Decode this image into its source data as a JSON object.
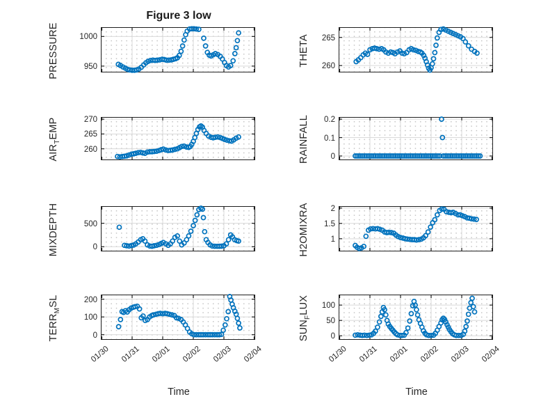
{
  "figure": {
    "title": "Figure 3 low",
    "xlabel": "Time",
    "x_tick_labels": [
      "01/30",
      "01/31",
      "02/01",
      "02/02",
      "02/03",
      "02/04"
    ],
    "x_range_days": [
      0,
      5
    ],
    "marker_color": "#0072BD",
    "axis_color": "#1f1f1f",
    "grid_color": "#d9d9d9",
    "minor_grid_color": "#c2c2c2",
    "text_color": "#262626",
    "background_color": "#ffffff"
  },
  "chart_data": [
    {
      "type": "scatter",
      "name": "pressure",
      "ylabel": [
        {
          "text": "PRESSURE"
        }
      ],
      "yticks": [
        950,
        1000
      ],
      "ylim": [
        940.5,
        1014.5
      ],
      "t": [
        0.55,
        0.62,
        0.7,
        0.78,
        0.85,
        0.92,
        1.0,
        1.08,
        1.15,
        1.22,
        1.3,
        1.38,
        1.45,
        1.52,
        1.6,
        1.68,
        1.75,
        1.82,
        1.9,
        1.98,
        2.05,
        2.12,
        2.2,
        2.28,
        2.35,
        2.42,
        2.48,
        2.54,
        2.6,
        2.65,
        2.7,
        2.75,
        2.8,
        2.88,
        2.95,
        3.02,
        3.1,
        3.18,
        3.34,
        3.4,
        3.46,
        3.52,
        3.58,
        3.65,
        3.72,
        3.8,
        3.88,
        3.95,
        4.02,
        4.08,
        4.15,
        4.22,
        4.3,
        4.36,
        4.4,
        4.44,
        4.48
      ],
      "v": [
        953,
        951,
        948.5,
        946.5,
        944.5,
        943.5,
        943,
        943,
        943.5,
        945,
        948,
        952,
        955.5,
        958,
        959.5,
        960,
        959.5,
        960,
        960.5,
        961.5,
        961,
        960,
        960,
        960.5,
        961.5,
        962.5,
        964,
        968,
        975,
        984,
        994,
        1003,
        1009,
        1012.5,
        1013,
        1013,
        1012.5,
        1012,
        997,
        984,
        973,
        968.5,
        967,
        969,
        971,
        969.5,
        966.5,
        962,
        956,
        951,
        948.5,
        951,
        959,
        971,
        981,
        993,
        1006
      ]
    },
    {
      "type": "scatter",
      "name": "theta",
      "ylabel": [
        {
          "text": "THETA"
        }
      ],
      "yticks": [
        260,
        265
      ],
      "ylim": [
        258.9,
        266.7
      ],
      "t": [
        0.55,
        0.62,
        0.7,
        0.78,
        0.85,
        0.92,
        1.0,
        1.08,
        1.15,
        1.22,
        1.3,
        1.38,
        1.45,
        1.52,
        1.6,
        1.68,
        1.75,
        1.82,
        1.9,
        1.98,
        2.05,
        2.12,
        2.2,
        2.28,
        2.35,
        2.42,
        2.5,
        2.58,
        2.65,
        2.7,
        2.76,
        2.8,
        2.84,
        2.88,
        2.92,
        2.96,
        3.0,
        3.04,
        3.08,
        3.12,
        3.16,
        3.2,
        3.26,
        3.32,
        3.4,
        3.48,
        3.56,
        3.64,
        3.72,
        3.8,
        3.88,
        3.96,
        4.04,
        4.12,
        4.22,
        4.32,
        4.42,
        4.5
      ],
      "v": [
        260.7,
        261.0,
        261.4,
        261.9,
        262.2,
        262.0,
        262.8,
        263.0,
        263.1,
        263.0,
        262.9,
        263.0,
        262.8,
        262.4,
        262.2,
        262.4,
        262.3,
        262.1,
        262.4,
        262.6,
        262.2,
        262.1,
        262.3,
        262.8,
        263.0,
        262.8,
        262.7,
        262.5,
        262.4,
        262.2,
        261.8,
        261.3,
        260.7,
        260.1,
        259.5,
        259.2,
        259.6,
        260.3,
        261.2,
        262.3,
        263.6,
        264.9,
        265.9,
        266.4,
        266.5,
        266.3,
        266.1,
        265.9,
        265.7,
        265.5,
        265.3,
        265.1,
        264.8,
        264.2,
        263.5,
        262.9,
        262.5,
        262.2
      ]
    },
    {
      "type": "scatter",
      "name": "air_temp",
      "ylabel": [
        {
          "text": "AIR"
        },
        {
          "text": "T",
          "sub": true
        },
        {
          "text": "EMP"
        }
      ],
      "yticks": [
        260,
        265,
        270
      ],
      "ylim": [
        256.4,
        270.5
      ],
      "t": [
        0.52,
        0.6,
        0.68,
        0.75,
        0.82,
        0.9,
        0.98,
        1.05,
        1.12,
        1.2,
        1.28,
        1.35,
        1.42,
        1.5,
        1.58,
        1.65,
        1.72,
        1.8,
        1.88,
        1.95,
        2.02,
        2.1,
        2.18,
        2.25,
        2.32,
        2.4,
        2.48,
        2.55,
        2.62,
        2.7,
        2.78,
        2.85,
        2.9,
        2.95,
        3.0,
        3.05,
        3.1,
        3.15,
        3.2,
        3.25,
        3.3,
        3.35,
        3.42,
        3.5,
        3.58,
        3.65,
        3.72,
        3.8,
        3.88,
        3.95,
        4.02,
        4.1,
        4.18,
        4.25,
        4.32,
        4.4,
        4.48
      ],
      "v": [
        257.4,
        257.3,
        257.4,
        257.5,
        257.6,
        257.9,
        258.2,
        258.3,
        258.5,
        258.7,
        258.8,
        258.6,
        258.5,
        258.9,
        259.0,
        259.0,
        259.1,
        259.2,
        259.4,
        259.7,
        259.9,
        259.6,
        259.4,
        259.5,
        259.6,
        259.8,
        260.0,
        260.4,
        260.8,
        260.9,
        260.6,
        260.5,
        260.8,
        261.5,
        262.5,
        263.8,
        265.2,
        266.5,
        267.4,
        267.7,
        267.3,
        266.2,
        265.2,
        264.3,
        263.9,
        263.7,
        263.9,
        264.0,
        263.8,
        263.5,
        263.2,
        262.9,
        262.7,
        262.6,
        263.0,
        263.6,
        264.0
      ]
    },
    {
      "type": "scatter",
      "name": "rainfall",
      "ylabel": [
        {
          "text": "RAINFALL"
        }
      ],
      "yticks": [
        0,
        0.1,
        0.2
      ],
      "ylim": [
        -0.019,
        0.208
      ],
      "t": [
        0.52,
        0.58,
        0.64,
        0.7,
        0.76,
        0.82,
        0.88,
        0.94,
        1.0,
        1.06,
        1.12,
        1.18,
        1.24,
        1.3,
        1.36,
        1.42,
        1.48,
        1.54,
        1.6,
        1.66,
        1.72,
        1.78,
        1.84,
        1.9,
        1.96,
        2.02,
        2.08,
        2.14,
        2.2,
        2.26,
        2.32,
        2.38,
        2.44,
        2.5,
        2.56,
        2.62,
        2.68,
        2.74,
        2.8,
        2.86,
        2.92,
        2.98,
        3.04,
        3.1,
        3.16,
        3.22,
        3.28,
        3.4,
        3.46,
        3.52,
        3.58,
        3.64,
        3.7,
        3.76,
        3.82,
        3.88,
        3.94,
        4.0,
        4.06,
        4.12,
        4.18,
        4.24,
        4.3,
        4.36,
        4.42,
        4.48,
        4.54,
        4.6,
        3.34,
        3.37
      ],
      "v": [
        0,
        0,
        0,
        0,
        0,
        0,
        0,
        0,
        0,
        0,
        0,
        0,
        0,
        0,
        0,
        0,
        0,
        0,
        0,
        0,
        0,
        0,
        0,
        0,
        0,
        0,
        0,
        0,
        0,
        0,
        0,
        0,
        0,
        0,
        0,
        0,
        0,
        0,
        0,
        0,
        0,
        0,
        0,
        0,
        0,
        0,
        0,
        0,
        0,
        0,
        0,
        0,
        0,
        0,
        0,
        0,
        0,
        0,
        0,
        0,
        0,
        0,
        0,
        0,
        0,
        0,
        0,
        0,
        0.2,
        0.1
      ]
    },
    {
      "type": "scatter",
      "name": "mixdepth",
      "ylabel": [
        {
          "text": "MIXDEPTH"
        }
      ],
      "yticks": [
        0,
        500
      ],
      "ylim": [
        -85,
        850
      ],
      "t": [
        0.58,
        0.75,
        0.82,
        0.9,
        0.98,
        1.05,
        1.12,
        1.2,
        1.28,
        1.35,
        1.42,
        1.5,
        1.58,
        1.65,
        1.72,
        1.8,
        1.88,
        1.95,
        2.02,
        2.1,
        2.18,
        2.25,
        2.32,
        2.4,
        2.48,
        2.55,
        2.62,
        2.7,
        2.78,
        2.85,
        2.92,
        3.0,
        3.06,
        3.12,
        3.18,
        3.25,
        3.3,
        3.33,
        3.37,
        3.42,
        3.48,
        3.55,
        3.62,
        3.7,
        3.78,
        3.85,
        3.92,
        4.0,
        4.08,
        4.15,
        4.22,
        4.28,
        4.35,
        4.42,
        4.48
      ],
      "v": [
        415,
        30,
        20,
        15,
        25,
        35,
        60,
        100,
        150,
        170,
        120,
        40,
        15,
        10,
        20,
        30,
        45,
        70,
        90,
        60,
        30,
        60,
        120,
        200,
        230,
        120,
        40,
        80,
        150,
        230,
        330,
        450,
        560,
        680,
        790,
        820,
        800,
        620,
        320,
        150,
        90,
        40,
        15,
        10,
        8,
        10,
        12,
        20,
        60,
        150,
        250,
        210,
        150,
        130,
        120
      ]
    },
    {
      "type": "scatter",
      "name": "h2omixra",
      "ylabel": [
        {
          "text": "H2OMIXRA"
        }
      ],
      "yticks": [
        1,
        1.5,
        2
      ],
      "ylim": [
        0.61,
        2.04
      ],
      "t": [
        0.52,
        0.58,
        0.65,
        0.72,
        0.8,
        0.87,
        0.95,
        1.02,
        1.1,
        1.18,
        1.25,
        1.32,
        1.4,
        1.48,
        1.55,
        1.62,
        1.7,
        1.78,
        1.85,
        1.92,
        2.0,
        2.08,
        2.15,
        2.22,
        2.3,
        2.38,
        2.45,
        2.52,
        2.6,
        2.68,
        2.75,
        2.82,
        2.9,
        2.98,
        3.05,
        3.12,
        3.2,
        3.28,
        3.35,
        3.42,
        3.5,
        3.58,
        3.65,
        3.72,
        3.8,
        3.88,
        3.95,
        4.02,
        4.1,
        4.18,
        4.25,
        4.32,
        4.4,
        4.48
      ],
      "v": [
        0.78,
        0.72,
        0.68,
        0.7,
        0.75,
        1.08,
        1.28,
        1.32,
        1.33,
        1.32,
        1.33,
        1.31,
        1.28,
        1.22,
        1.2,
        1.21,
        1.2,
        1.18,
        1.12,
        1.07,
        1.04,
        1.02,
        1.0,
        0.99,
        0.98,
        0.97,
        0.97,
        0.96,
        0.97,
        0.99,
        1.03,
        1.1,
        1.22,
        1.38,
        1.52,
        1.62,
        1.78,
        1.92,
        1.97,
        1.96,
        1.88,
        1.86,
        1.85,
        1.86,
        1.82,
        1.78,
        1.78,
        1.75,
        1.72,
        1.68,
        1.67,
        1.65,
        1.64,
        1.63
      ]
    },
    {
      "type": "scatter",
      "name": "terr_msl",
      "ylabel": [
        {
          "text": "TERR"
        },
        {
          "text": "M",
          "sub": true
        },
        {
          "text": "SL"
        }
      ],
      "yticks": [
        0,
        100,
        200
      ],
      "ylim": [
        -25,
        222
      ],
      "t": [
        0.56,
        0.62,
        0.67,
        0.72,
        0.78,
        0.84,
        0.9,
        0.97,
        1.04,
        1.1,
        1.17,
        1.24,
        1.3,
        1.36,
        1.43,
        1.5,
        1.57,
        1.64,
        1.7,
        1.78,
        1.85,
        1.92,
        2.0,
        2.08,
        2.15,
        2.22,
        2.3,
        2.38,
        2.45,
        2.52,
        2.6,
        2.67,
        2.74,
        2.81,
        2.88,
        2.95,
        3.02,
        3.1,
        3.18,
        3.25,
        3.32,
        3.4,
        3.48,
        3.55,
        3.62,
        3.7,
        3.78,
        3.85,
        3.92,
        3.98,
        4.04,
        4.09,
        4.14,
        4.19,
        4.23,
        4.27,
        4.31,
        4.36,
        4.4,
        4.44,
        4.48,
        4.52
      ],
      "v": [
        45,
        85,
        130,
        125,
        135,
        128,
        140,
        150,
        155,
        158,
        160,
        145,
        95,
        105,
        80,
        85,
        100,
        108,
        112,
        115,
        118,
        120,
        118,
        120,
        118,
        115,
        112,
        108,
        95,
        92,
        85,
        72,
        55,
        35,
        15,
        5,
        0,
        0,
        0,
        0,
        0,
        0,
        0,
        0,
        0,
        0,
        0,
        0,
        2,
        25,
        55,
        90,
        130,
        215,
        195,
        172,
        152,
        132,
        115,
        92,
        65,
        38
      ]
    },
    {
      "type": "scatter",
      "name": "sun_flux",
      "ylabel": [
        {
          "text": "SUN"
        },
        {
          "text": "F",
          "sub": true
        },
        {
          "text": "LUX"
        }
      ],
      "yticks": [
        0,
        50,
        100
      ],
      "ylim": [
        -11,
        132
      ],
      "t": [
        0.52,
        0.6,
        0.68,
        0.75,
        0.82,
        0.9,
        0.98,
        1.05,
        1.12,
        1.18,
        1.25,
        1.31,
        1.36,
        1.4,
        1.44,
        1.48,
        1.52,
        1.56,
        1.6,
        1.65,
        1.7,
        1.75,
        1.8,
        1.85,
        1.9,
        1.98,
        2.05,
        2.12,
        2.18,
        2.24,
        2.3,
        2.35,
        2.4,
        2.44,
        2.48,
        2.52,
        2.56,
        2.6,
        2.65,
        2.7,
        2.75,
        2.8,
        2.85,
        2.92,
        3.0,
        3.08,
        3.14,
        3.2,
        3.26,
        3.32,
        3.36,
        3.4,
        3.44,
        3.48,
        3.52,
        3.56,
        3.6,
        3.65,
        3.7,
        3.76,
        3.82,
        3.9,
        3.98,
        4.05,
        4.1,
        4.14,
        4.18,
        4.22,
        4.26,
        4.3,
        4.34,
        4.38,
        4.42
      ],
      "v": [
        2,
        3,
        2,
        1,
        2,
        1,
        2,
        3,
        8,
        15,
        28,
        45,
        63,
        78,
        92,
        85,
        68,
        50,
        38,
        30,
        24,
        18,
        12,
        7,
        3,
        1,
        1,
        2,
        10,
        25,
        48,
        72,
        98,
        112,
        100,
        85,
        68,
        52,
        40,
        28,
        16,
        8,
        3,
        1,
        1,
        2,
        8,
        18,
        30,
        42,
        52,
        57,
        53,
        45,
        36,
        28,
        20,
        13,
        7,
        3,
        1,
        1,
        1,
        5,
        15,
        30,
        48,
        70,
        90,
        108,
        122,
        95,
        78
      ]
    }
  ]
}
